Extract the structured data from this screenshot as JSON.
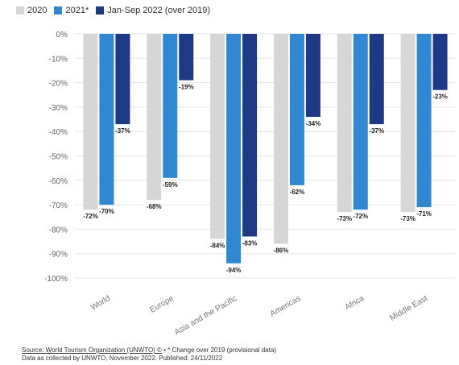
{
  "chart_data": {
    "type": "bar",
    "categories": [
      "World",
      "Europe",
      "Asia and the Pacific",
      "Americas",
      "Africa",
      "Middle East"
    ],
    "series": [
      {
        "name": "2020",
        "color": "#d6d6d6",
        "values": [
          -72,
          -68,
          -84,
          -86,
          -73,
          -73
        ]
      },
      {
        "name": "2021*",
        "color": "#2e88d4",
        "values": [
          -70,
          -59,
          -94,
          -62,
          -72,
          -71
        ]
      },
      {
        "name": "Jan-Sep 2022 (over 2019)",
        "color": "#1e3a87",
        "values": [
          -37,
          -19,
          -83,
          -34,
          -37,
          -23
        ]
      }
    ],
    "data_labels": [
      [
        "-72%",
        "-68%",
        "-84%",
        "-86%",
        "-73%",
        "-73%"
      ],
      [
        "-70%",
        "-59%",
        "-94%",
        "-62%",
        "-72%",
        "-71%"
      ],
      [
        "-37%",
        "-19%",
        "-83%",
        "-34%",
        "-37%",
        "-23%"
      ]
    ],
    "ylim": [
      -100,
      0
    ],
    "yticks": [
      "0%",
      "-10%",
      "-20%",
      "-30%",
      "-40%",
      "-50%",
      "-60%",
      "-70%",
      "-80%",
      "-90%",
      "-100%"
    ],
    "grid": true,
    "legend_position": "top-left"
  },
  "footer": {
    "source": "Source: World Tourism Organization (UNWTO) ©",
    "note": " • * Change over 2019 (provisional data)",
    "line2": "Data as collected by UNWTO, November 2022. Published: 24/11/2022"
  }
}
